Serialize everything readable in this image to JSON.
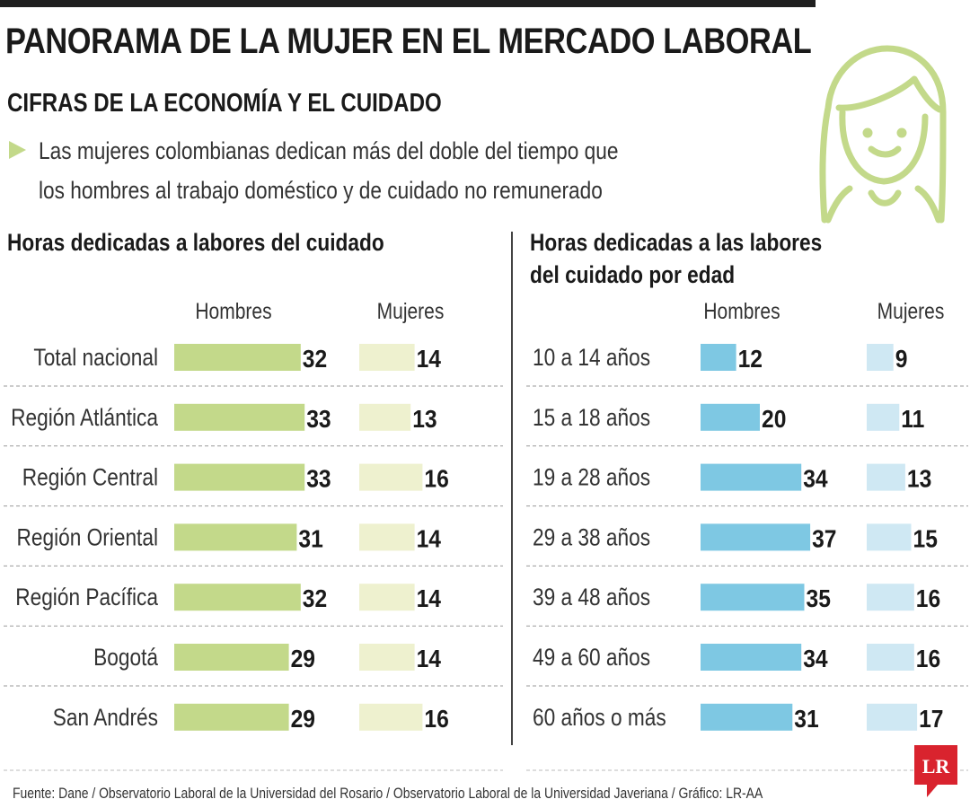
{
  "header": {
    "title": "PANORAMA DE LA MUJER EN EL MERCADO LABORAL",
    "subtitle": "CIFRAS DE LA ECONOMÍA Y EL CUIDADO",
    "intro_line1": "Las mujeres colombianas dedican más del doble del tiempo que",
    "intro_line2": "los hombres al trabajo doméstico y de cuidado no remunerado"
  },
  "colors": {
    "men_green": "#c3d98a",
    "women_green": "#eef1cf",
    "men_blue": "#7ec8e3",
    "women_blue": "#cfe8f3",
    "icon_green": "#c3d98a",
    "logo_red": "#d9232e"
  },
  "chart_data": [
    {
      "type": "bar",
      "title": "Horas dedicadas a labores del cuidado",
      "categories": [
        "Total nacional",
        "Región Atlántica",
        "Región Central",
        "Región Oriental",
        "Región Pacífica",
        "Bogotá",
        "San Andrés"
      ],
      "series": [
        {
          "name": "Hombres",
          "values": [
            32,
            33,
            33,
            31,
            32,
            29,
            29
          ]
        },
        {
          "name": "Mujeres",
          "values": [
            14,
            13,
            16,
            14,
            14,
            14,
            16
          ]
        }
      ]
    },
    {
      "type": "bar",
      "title_line1": "Horas dedicadas a las labores",
      "title_line2": "del cuidado por edad",
      "categories": [
        "10 a 14 años",
        "15 a 18 años",
        "19 a 28 años",
        "29 a 38 años",
        "39 a 48 años",
        "49 a 60 años",
        "60 años o más"
      ],
      "series": [
        {
          "name": "Hombres",
          "values": [
            12,
            20,
            34,
            37,
            35,
            34,
            31
          ]
        },
        {
          "name": "Mujeres",
          "values": [
            9,
            11,
            13,
            15,
            16,
            16,
            17
          ]
        }
      ]
    }
  ],
  "footer": {
    "source": "Fuente: Dane / Observatorio Laboral de la Universidad del Rosario / Observatorio Laboral de la Universidad Javeriana / Gráfico: LR-AA",
    "logo_text": "LR"
  }
}
